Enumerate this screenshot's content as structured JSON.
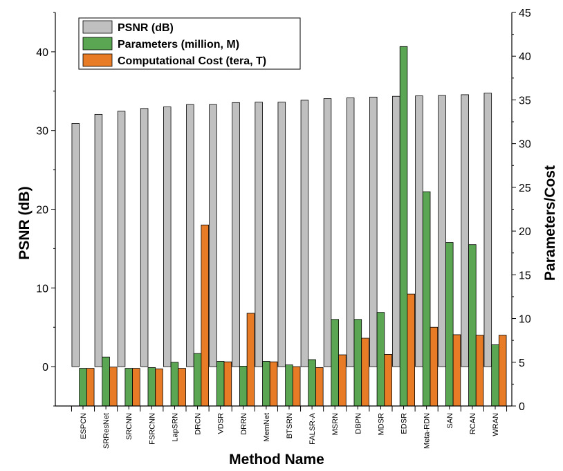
{
  "chart_data": {
    "type": "bar",
    "categories": [
      "ESPCN",
      "SRResNet",
      "SRCNN",
      "FSRCNN",
      "LapSRN",
      "DRCN",
      "VDSR",
      "DRRN",
      "MemNet",
      "BTSRN",
      "FALSR-A",
      "MSRN",
      "DBPN",
      "MDSR",
      "EDSR",
      "Meta-RDN",
      "SAN",
      "RCAN",
      "WRAN"
    ],
    "series": [
      {
        "name": "PSNR (dB)",
        "axis": "left",
        "color": "#c0c0c0",
        "values": [
          30.9,
          32.05,
          32.45,
          32.8,
          33.0,
          33.3,
          33.3,
          33.55,
          33.6,
          33.6,
          33.85,
          34.05,
          34.15,
          34.25,
          34.35,
          34.4,
          34.45,
          34.55,
          34.75
        ]
      },
      {
        "name": "Parameters (million, M)",
        "axis": "right",
        "color": "#5aa652",
        "values": [
          4.3,
          5.6,
          4.3,
          4.4,
          5.0,
          6.0,
          5.1,
          4.55,
          5.1,
          4.7,
          5.3,
          9.9,
          9.9,
          10.7,
          41.1,
          24.5,
          18.7,
          18.45,
          7.0
        ]
      },
      {
        "name": "Computational Cost (tera, T)",
        "axis": "right",
        "color": "#e87c26",
        "values": [
          4.3,
          4.45,
          4.3,
          4.25,
          4.3,
          20.7,
          5.05,
          10.6,
          5.05,
          4.5,
          4.4,
          5.85,
          7.75,
          5.9,
          12.8,
          9.0,
          8.15,
          8.1,
          8.1
        ]
      }
    ],
    "xlabel": "Method Name",
    "ylabel": "PSNR (dB)",
    "y2label": "Parameters/Cost",
    "ylim": [
      -5,
      45
    ],
    "y2lim": [
      0,
      45
    ],
    "yticks": [
      0,
      10,
      20,
      30,
      40
    ],
    "y2ticks": [
      0,
      5,
      10,
      15,
      20,
      25,
      30,
      35,
      40,
      45
    ],
    "grid": false,
    "legend_position": "top-left"
  }
}
